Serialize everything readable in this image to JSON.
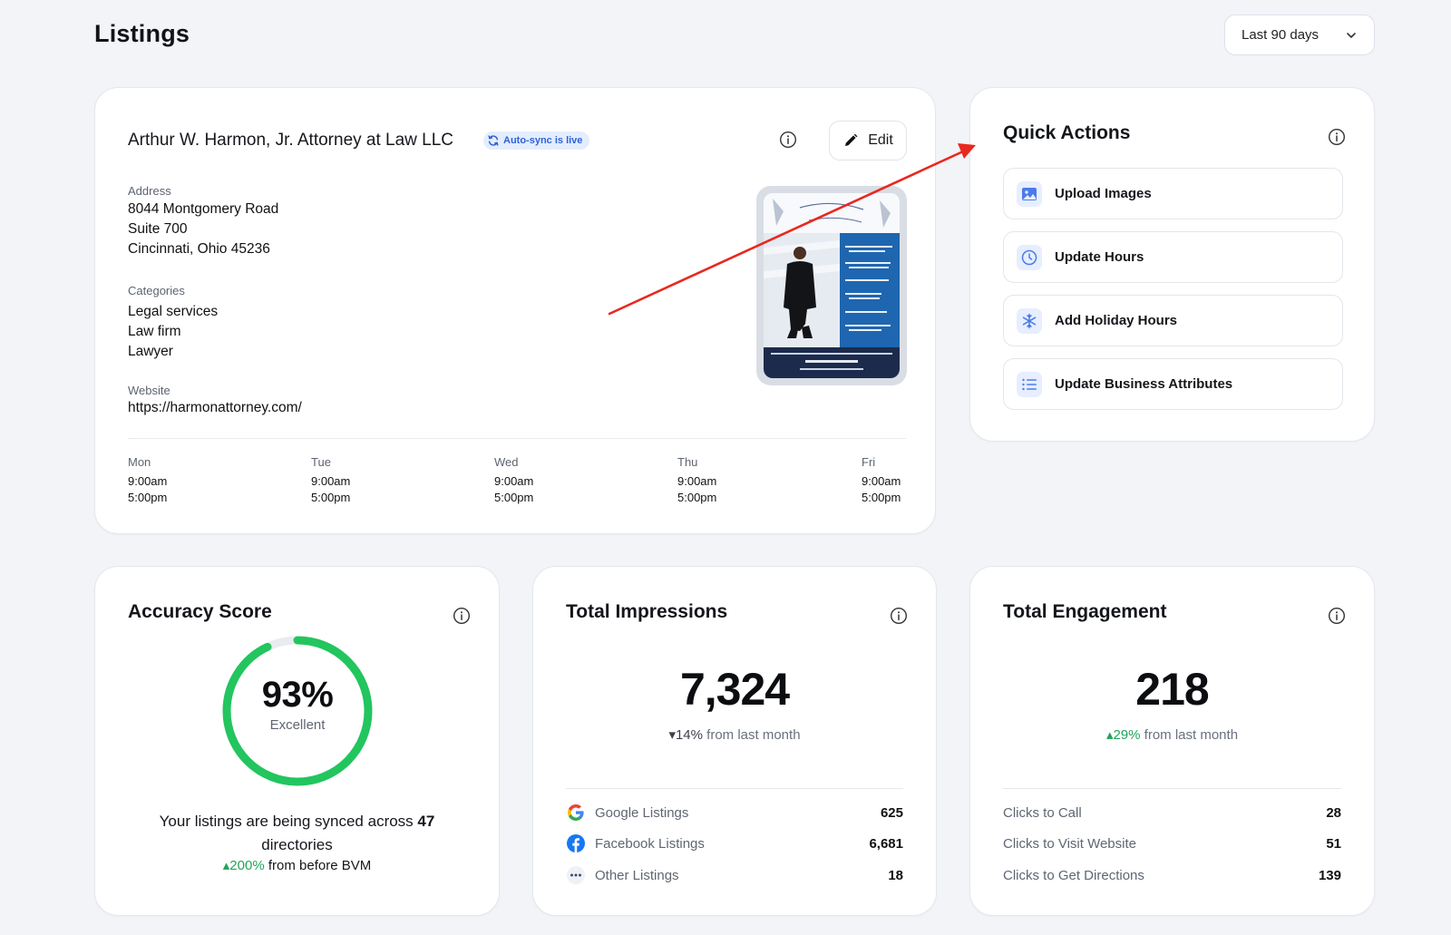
{
  "header": {
    "title": "Listings",
    "date_range": "Last 90 days"
  },
  "business": {
    "name": "Arthur W. Harmon, Jr. Attorney at Law LLC",
    "sync_badge": "Auto-sync is live",
    "edit_label": "Edit",
    "address_label": "Address",
    "address_lines": [
      "8044 Montgomery Road",
      "Suite 700",
      "Cincinnati, Ohio 45236"
    ],
    "categories_label": "Categories",
    "categories": [
      "Legal services",
      "Law firm",
      "Lawyer"
    ],
    "website_label": "Website",
    "website": "https://harmonattorney.com/",
    "hours": [
      {
        "day": "Mon",
        "open": "9:00am",
        "close": "5:00pm"
      },
      {
        "day": "Tue",
        "open": "9:00am",
        "close": "5:00pm"
      },
      {
        "day": "Wed",
        "open": "9:00am",
        "close": "5:00pm"
      },
      {
        "day": "Thu",
        "open": "9:00am",
        "close": "5:00pm"
      },
      {
        "day": "Fri",
        "open": "9:00am",
        "close": "5:00pm"
      }
    ]
  },
  "quick_actions": {
    "title": "Quick Actions",
    "items": [
      {
        "label": "Upload Images",
        "icon": "image-icon"
      },
      {
        "label": "Update Hours",
        "icon": "clock-icon"
      },
      {
        "label": "Add Holiday Hours",
        "icon": "snowflake-icon"
      },
      {
        "label": "Update Business Attributes",
        "icon": "list-icon"
      }
    ]
  },
  "accuracy": {
    "title": "Accuracy Score",
    "score": "93%",
    "score_value": 0.93,
    "score_label": "Excellent",
    "sync_text_pre": "Your listings are being synced across",
    "sync_count": "47",
    "sync_text_post": "directories",
    "trend_pct": "200%",
    "trend_text": "from before BVM"
  },
  "impressions": {
    "title": "Total Impressions",
    "total": "7,324",
    "trend_pct": "14%",
    "trend_text": "from last month",
    "rows": [
      {
        "label": "Google Listings",
        "value": "625",
        "icon": "google-icon"
      },
      {
        "label": "Facebook Listings",
        "value": "6,681",
        "icon": "facebook-icon"
      },
      {
        "label": "Other Listings",
        "value": "18",
        "icon": "more-icon"
      }
    ]
  },
  "engagement": {
    "title": "Total Engagement",
    "total": "218",
    "trend_pct": "29%",
    "trend_text": "from last month",
    "rows": [
      {
        "label": "Clicks to Call",
        "value": "28"
      },
      {
        "label": "Clicks to Visit Website",
        "value": "51"
      },
      {
        "label": "Clicks to Get Directions",
        "value": "139"
      }
    ]
  },
  "colors": {
    "accent_green": "#22c55e",
    "badge_blue": "#2e63d6",
    "arrow_red": "#e8281e"
  }
}
